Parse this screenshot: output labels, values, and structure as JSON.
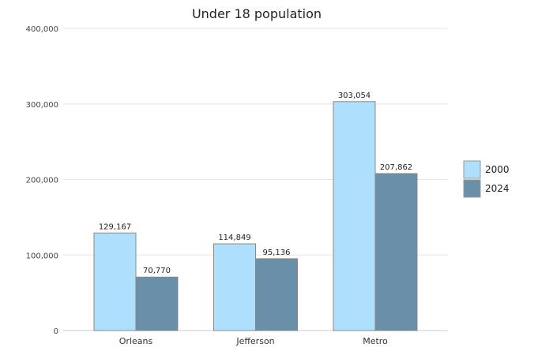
{
  "chart_data": {
    "type": "bar",
    "title": "Under 18 population",
    "xlabel": "",
    "ylabel": "",
    "categories": [
      "Orleans",
      "Jefferson",
      "Metro"
    ],
    "series": [
      {
        "name": "2000",
        "values": [
          129167,
          114849,
          303054
        ],
        "labels": [
          "129,167",
          "114,849",
          "303,054"
        ],
        "color": "#aee0fb"
      },
      {
        "name": "2024",
        "values": [
          70770,
          95136,
          207862
        ],
        "labels": [
          "70,770",
          "95,136",
          "207,862"
        ],
        "color": "#6a8fa9"
      }
    ],
    "ylim": [
      0,
      400000
    ],
    "yticks": [
      0,
      100000,
      200000,
      300000,
      400000
    ],
    "ytick_labels": [
      "0",
      "100,000",
      "200,000",
      "300,000",
      "400,000"
    ],
    "grid": true,
    "legend": "right"
  }
}
